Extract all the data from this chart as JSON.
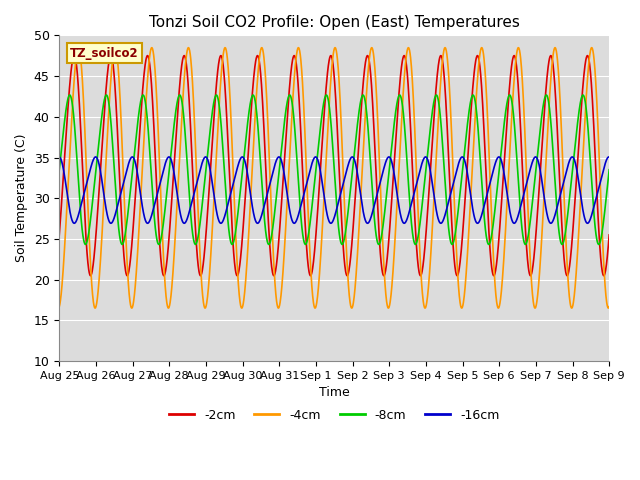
{
  "title": "Tonzi Soil CO2 Profile: Open (East) Temperatures",
  "xlabel": "Time",
  "ylabel": "Soil Temperature (C)",
  "ylim": [
    10,
    50
  ],
  "yticks": [
    10,
    15,
    20,
    25,
    30,
    35,
    40,
    45,
    50
  ],
  "background_color": "#dcdcdc",
  "legend_label": "TZ_soilco2",
  "series": [
    {
      "label": "-2cm",
      "color": "#dd0000",
      "mean": 34.0,
      "amplitude": 14.5,
      "phase_shift": 0.12,
      "shape": 0.3
    },
    {
      "label": "-4cm",
      "color": "#ff9900",
      "mean": 32.5,
      "amplitude": 17.0,
      "phase_shift": 0.0,
      "shape": 0.25
    },
    {
      "label": "-8cm",
      "color": "#00cc00",
      "mean": 33.5,
      "amplitude": 10.0,
      "phase_shift": 0.25,
      "shape": 0.4
    },
    {
      "label": "-16cm",
      "color": "#0000cc",
      "mean": 31.0,
      "amplitude": 4.5,
      "phase_shift": 0.55,
      "shape": 0.5
    }
  ],
  "x_tick_labels": [
    "Aug 25",
    "Aug 26",
    "Aug 27",
    "Aug 28",
    "Aug 29",
    "Aug 30",
    "Aug 31",
    "Sep 1",
    "Sep 2",
    "Sep 3",
    "Sep 4",
    "Sep 5",
    "Sep 6",
    "Sep 7",
    "Sep 8",
    "Sep 9"
  ],
  "n_days": 15,
  "n_points": 2000,
  "start_day": 0,
  "end_day": 15
}
